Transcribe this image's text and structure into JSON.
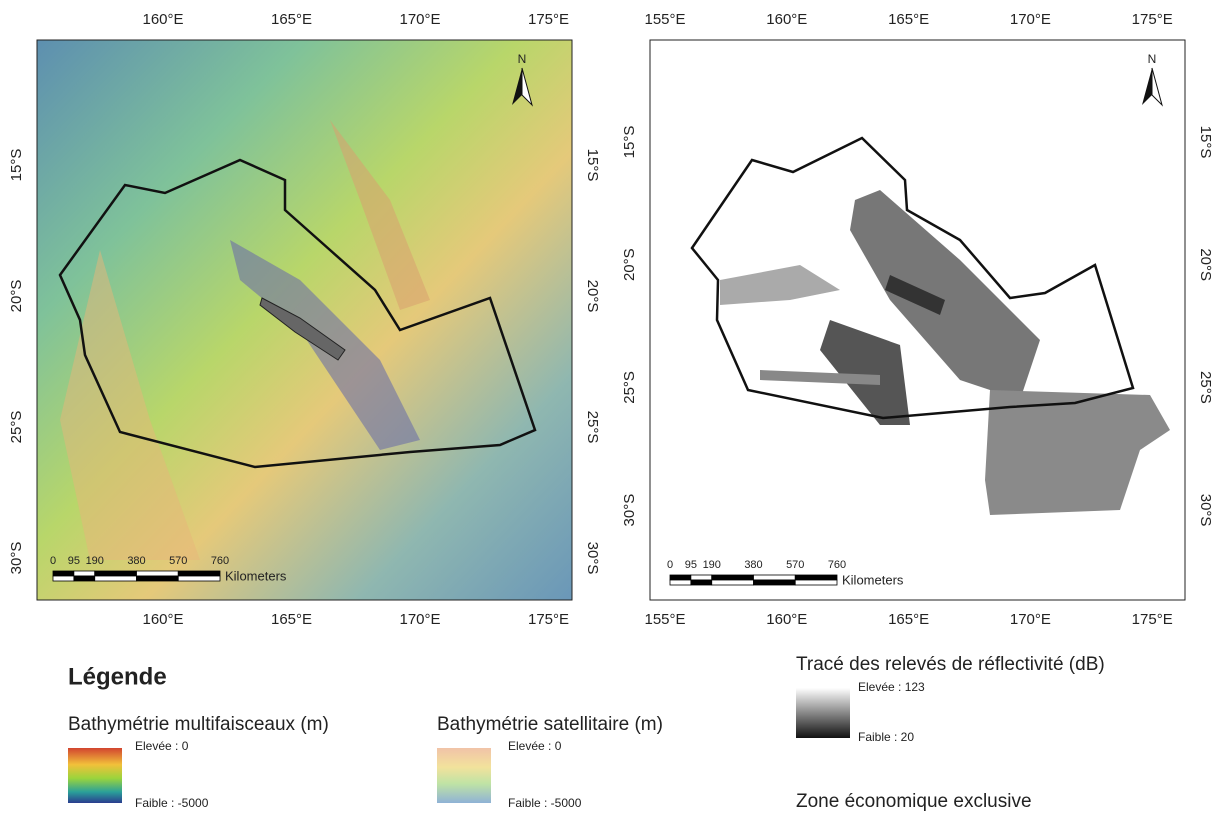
{
  "maps": [
    {
      "x_labels": [
        "160°E",
        "165°E",
        "170°E",
        "175°E"
      ],
      "y_labels": [
        "15°S",
        "20°S",
        "25°S",
        "30°S"
      ],
      "scale_bar": {
        "ticks": [
          0,
          95,
          190,
          380,
          570,
          760
        ],
        "unit": "Kilometers"
      },
      "north": "N"
    },
    {
      "x_labels": [
        "155°E",
        "160°E",
        "165°E",
        "170°E",
        "175°E"
      ],
      "y_labels": [
        "15°S",
        "20°S",
        "25°S",
        "30°S"
      ],
      "scale_bar": {
        "ticks": [
          0,
          95,
          190,
          380,
          570,
          760
        ],
        "unit": "Kilometers"
      },
      "north": "N"
    }
  ],
  "legend": {
    "title": "Légende",
    "items": [
      {
        "title": "Bathymétrie multifaisceaux (m)",
        "high": "Elevée : 0",
        "low": "Faible : -5000"
      },
      {
        "title": "Bathymétrie satellitaire (m)",
        "high": "Elevée : 0",
        "low": "Faible : -5000"
      },
      {
        "title": "Tracé des relevés de réflectivité (dB)",
        "high": "Elevée : 123",
        "low": "Faible : 20"
      }
    ],
    "eez": "Zone économique exclusive"
  }
}
